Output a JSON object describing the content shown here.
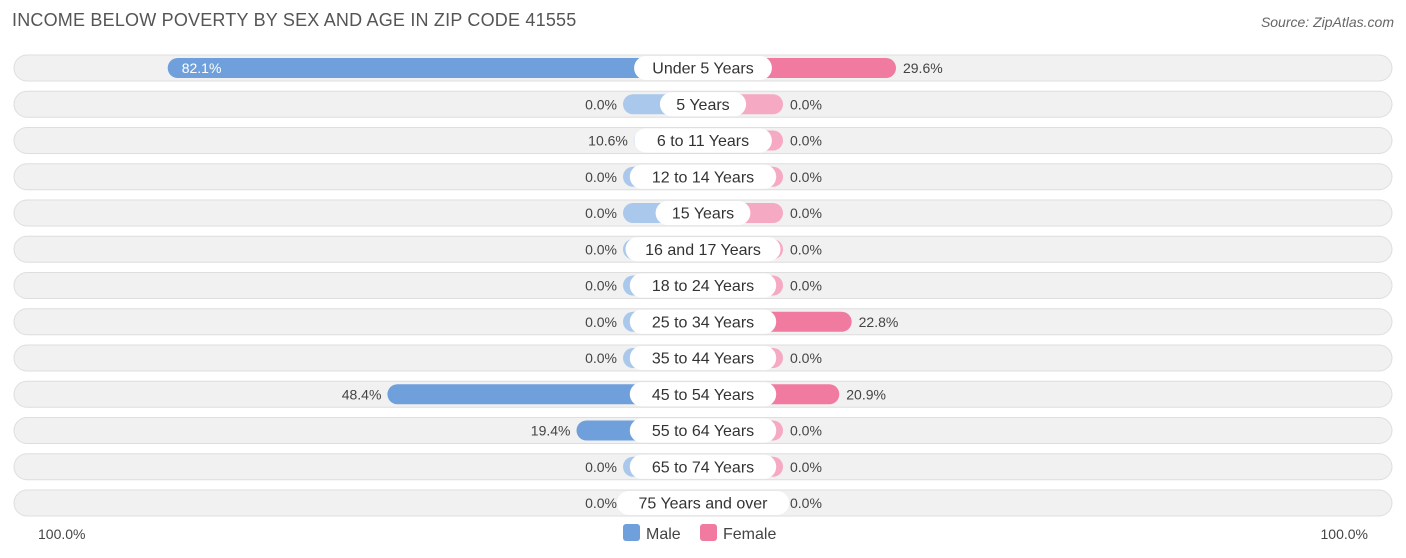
{
  "title": "INCOME BELOW POVERTY BY SEX AND AGE IN ZIP CODE 41555",
  "source": "Source: ZipAtlas.com",
  "colors": {
    "male_strong": "#6fa0dc",
    "male_light": "#a9c8ec",
    "female_strong": "#f07aa0",
    "female_light": "#f6a9c3"
  },
  "chart_data": {
    "type": "bar",
    "orientation": "horizontal-diverging",
    "categories": [
      "Under 5 Years",
      "5 Years",
      "6 to 11 Years",
      "12 to 14 Years",
      "15 Years",
      "16 and 17 Years",
      "18 to 24 Years",
      "25 to 34 Years",
      "35 to 44 Years",
      "45 to 54 Years",
      "55 to 64 Years",
      "65 to 74 Years",
      "75 Years and over"
    ],
    "series": [
      {
        "name": "Male",
        "values": [
          82.1,
          0.0,
          10.6,
          0.0,
          0.0,
          0.0,
          0.0,
          0.0,
          0.0,
          48.4,
          19.4,
          0.0,
          0.0
        ]
      },
      {
        "name": "Female",
        "values": [
          29.6,
          0.0,
          0.0,
          0.0,
          0.0,
          0.0,
          0.0,
          22.8,
          0.0,
          20.9,
          0.0,
          0.0,
          0.0
        ]
      }
    ],
    "xlim": [
      0,
      100
    ],
    "axis_left_label": "100.0%",
    "axis_right_label": "100.0%",
    "legend": "bottom-center"
  }
}
